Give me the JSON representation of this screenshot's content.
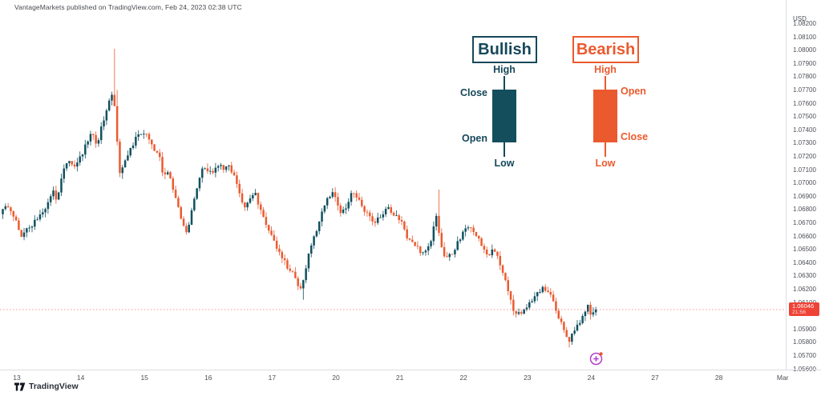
{
  "header": {
    "attribution": "VantageMarkets published on TradingView.com, Feb 24, 2023 02:38 UTC"
  },
  "footer": {
    "logo_text": "TradingView"
  },
  "last_price_label": {
    "price": "1.06046",
    "countdown": "21:56",
    "color": "#ef4337"
  },
  "legend": {
    "bullish": {
      "title": "Bullish",
      "high": "High",
      "close": "Close",
      "open": "Open",
      "low": "Low",
      "color": "#16485a"
    },
    "bearish": {
      "title": "Bearish",
      "high": "High",
      "open": "Open",
      "close": "Close",
      "low": "Low",
      "color": "#eb5a2e"
    }
  },
  "chart_data": {
    "type": "candlestick",
    "currency": "USD",
    "grid": false,
    "y_range": [
      1.056,
      1.082
    ],
    "y_tick_step": 0.001,
    "price_ticks": [
      "1.08200",
      "1.08100",
      "1.08000",
      "1.07900",
      "1.07800",
      "1.07700",
      "1.07600",
      "1.07500",
      "1.07400",
      "1.07300",
      "1.07200",
      "1.07100",
      "1.07000",
      "1.06900",
      "1.06800",
      "1.06700",
      "1.06600",
      "1.06500",
      "1.06400",
      "1.06300",
      "1.06200",
      "1.06100",
      "1.05900",
      "1.05800",
      "1.05700",
      "1.05600"
    ],
    "time_ticks": [
      "13",
      "14",
      "15",
      "16",
      "17",
      "20",
      "21",
      "22",
      "23",
      "24",
      "27",
      "28",
      "Mar"
    ],
    "last_price": 1.06046,
    "bullish_color": "#11505f",
    "bearish_color": "#ea5b31",
    "price_path": [
      [
        3,
        1.0676
      ],
      [
        10,
        1.0681
      ],
      [
        16,
        1.068
      ],
      [
        22,
        1.0672
      ],
      [
        30,
        1.0661
      ],
      [
        40,
        1.0666
      ],
      [
        50,
        1.0674
      ],
      [
        60,
        1.068
      ],
      [
        68,
        1.0694
      ],
      [
        74,
        1.0688
      ],
      [
        82,
        1.0708
      ],
      [
        90,
        1.0717
      ],
      [
        97,
        1.071
      ],
      [
        104,
        1.072
      ],
      [
        112,
        1.073
      ],
      [
        118,
        1.0738
      ],
      [
        124,
        1.0726
      ],
      [
        131,
        1.0745
      ],
      [
        137,
        1.0758
      ],
      [
        143,
        1.0765
      ],
      [
        147,
        1.0756
      ],
      [
        152,
        1.0708
      ],
      [
        158,
        1.0716
      ],
      [
        164,
        1.0724
      ],
      [
        170,
        1.073
      ],
      [
        177,
        1.0738
      ],
      [
        184,
        1.0739
      ],
      [
        190,
        1.073
      ],
      [
        196,
        1.0724
      ],
      [
        202,
        1.072
      ],
      [
        207,
        1.0706
      ],
      [
        212,
        1.071
      ],
      [
        218,
        1.0698
      ],
      [
        225,
        1.0684
      ],
      [
        231,
        1.0668
      ],
      [
        237,
        1.0661
      ],
      [
        243,
        1.068
      ],
      [
        250,
        1.07
      ],
      [
        257,
        1.0712
      ],
      [
        263,
        1.0708
      ],
      [
        270,
        1.071
      ],
      [
        277,
        1.0713
      ],
      [
        284,
        1.071
      ],
      [
        290,
        1.0712
      ],
      [
        296,
        1.0706
      ],
      [
        303,
        1.069
      ],
      [
        309,
        1.0682
      ],
      [
        315,
        1.069
      ],
      [
        321,
        1.0693
      ],
      [
        327,
        1.068
      ],
      [
        334,
        1.067
      ],
      [
        341,
        1.0661
      ],
      [
        348,
        1.0653
      ],
      [
        355,
        1.0643
      ],
      [
        362,
        1.0637
      ],
      [
        368,
        1.0633
      ],
      [
        374,
        1.0625
      ],
      [
        379,
        1.062
      ],
      [
        384,
        1.0632
      ],
      [
        390,
        1.065
      ],
      [
        396,
        1.0662
      ],
      [
        402,
        1.0672
      ],
      [
        408,
        1.0683
      ],
      [
        414,
        1.0691
      ],
      [
        419,
        1.0693
      ],
      [
        424,
        1.0686
      ],
      [
        429,
        1.0676
      ],
      [
        434,
        1.068
      ],
      [
        440,
        1.069
      ],
      [
        445,
        1.0692
      ],
      [
        451,
        1.0687
      ],
      [
        457,
        1.0681
      ],
      [
        463,
        1.0674
      ],
      [
        470,
        1.067
      ],
      [
        476,
        1.0674
      ],
      [
        483,
        1.0679
      ],
      [
        490,
        1.068
      ],
      [
        497,
        1.0676
      ],
      [
        503,
        1.0671
      ],
      [
        509,
        1.0662
      ],
      [
        516,
        1.0654
      ],
      [
        523,
        1.0652
      ],
      [
        529,
        1.0648
      ],
      [
        536,
        1.065
      ],
      [
        542,
        1.0658
      ],
      [
        547,
        1.0676
      ],
      [
        551,
        1.066
      ],
      [
        556,
        1.0646
      ],
      [
        562,
        1.0643
      ],
      [
        568,
        1.0648
      ],
      [
        574,
        1.0655
      ],
      [
        580,
        1.0662
      ],
      [
        587,
        1.0665
      ],
      [
        593,
        1.0664
      ],
      [
        599,
        1.0659
      ],
      [
        605,
        1.0651
      ],
      [
        611,
        1.0644
      ],
      [
        617,
        1.0648
      ],
      [
        623,
        1.0645
      ],
      [
        629,
        1.0634
      ],
      [
        635,
        1.0625
      ],
      [
        640,
        1.0612
      ],
      [
        645,
        1.0603
      ],
      [
        651,
        1.0601
      ],
      [
        657,
        1.0605
      ],
      [
        663,
        1.061
      ],
      [
        669,
        1.0614
      ],
      [
        676,
        1.0619
      ],
      [
        682,
        1.0621
      ],
      [
        688,
        1.0618
      ],
      [
        693,
        1.0612
      ],
      [
        698,
        1.0603
      ],
      [
        703,
        1.0594
      ],
      [
        708,
        1.0585
      ],
      [
        713,
        1.058
      ],
      [
        718,
        1.0587
      ],
      [
        723,
        1.0592
      ],
      [
        728,
        1.0598
      ],
      [
        733,
        1.0604
      ],
      [
        738,
        1.0607
      ],
      [
        741,
        1.0599
      ],
      [
        745,
        1.06046
      ]
    ],
    "wick_extremes": [
      {
        "x": 143,
        "high": 1.0801
      },
      {
        "x": 147,
        "high": 1.077
      },
      {
        "x": 152,
        "low": 1.0703
      },
      {
        "x": 379,
        "low": 1.0612
      },
      {
        "x": 547,
        "high": 1.0695
      },
      {
        "x": 710,
        "low": 1.0576
      }
    ]
  }
}
